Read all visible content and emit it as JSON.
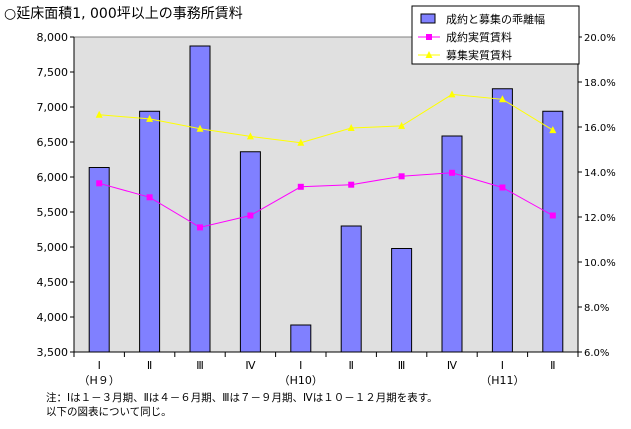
{
  "title": "○延床面積1, 000坪以上の事務所賃料",
  "note_lines": [
    "注：Ⅰは１－３月期、Ⅱは４－６月期、Ⅲは７－９月期、Ⅳは１０－１２月期を表す。",
    "以下の図表について同じ。"
  ],
  "colors": {
    "bar": "#8080ff",
    "line1": "#ff00ff",
    "line2": "#ffff00",
    "plot_bg": "#e0e0e0"
  },
  "chart_data": {
    "type": "bar",
    "categories": [
      "Ⅰ",
      "Ⅱ",
      "Ⅲ",
      "Ⅳ",
      "Ⅰ",
      "Ⅱ",
      "Ⅲ",
      "Ⅳ",
      "Ⅰ",
      "Ⅱ"
    ],
    "category_sublabels": [
      "（H９）",
      "",
      "",
      "",
      "（H10）",
      "",
      "",
      "",
      "（H11）",
      ""
    ],
    "ylim": [
      3500,
      8000
    ],
    "yticks": [
      "3,500",
      "4,000",
      "4,500",
      "5,000",
      "5,500",
      "6,000",
      "6,500",
      "7,000",
      "7,500",
      "8,000"
    ],
    "y2lim": [
      6.0,
      20.0
    ],
    "y2ticks": [
      "6.0%",
      "8.0%",
      "10.0%",
      "12.0%",
      "14.0%",
      "16.0%",
      "18.0%",
      "20.0%"
    ],
    "legend_position": "top-right",
    "grid": false,
    "series": [
      {
        "name": "成約と募集の乖離幅",
        "kind": "bar",
        "axis": "y2",
        "values": [
          14.2,
          16.7,
          19.6,
          14.9,
          7.2,
          11.6,
          10.6,
          15.6,
          17.7,
          16.7
        ]
      },
      {
        "name": "成約実質賃料",
        "kind": "line",
        "axis": "y",
        "values": [
          5910,
          5710,
          5280,
          5450,
          5860,
          5890,
          6010,
          6060,
          5850,
          5450
        ]
      },
      {
        "name": "募集実質賃料",
        "kind": "line",
        "axis": "y",
        "values": [
          6890,
          6830,
          6690,
          6580,
          6490,
          6700,
          6730,
          7180,
          7110,
          6670
        ]
      }
    ]
  }
}
